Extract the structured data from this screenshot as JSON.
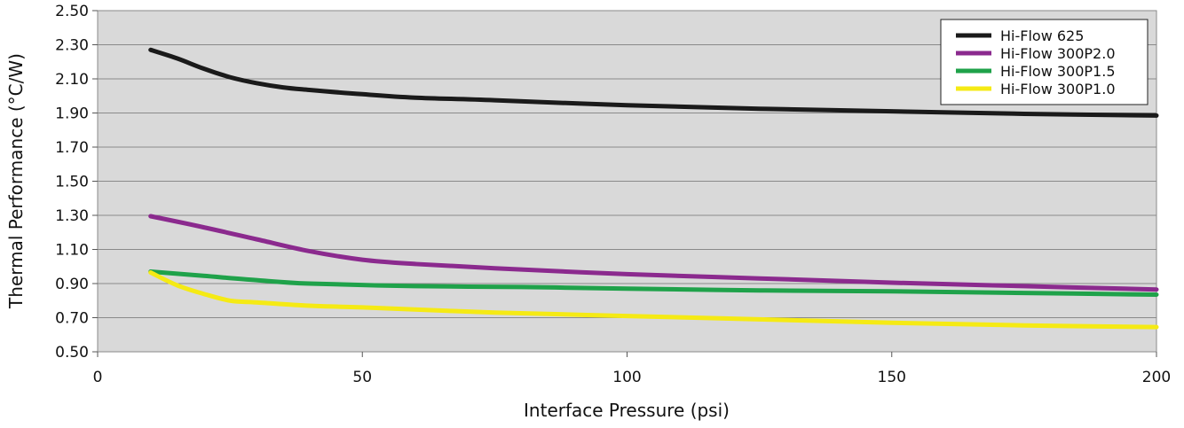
{
  "chart_data": {
    "type": "line",
    "xlabel": "Interface Pressure (psi)",
    "ylabel": "Thermal Performance (°C/W)",
    "xlim": [
      0,
      200
    ],
    "ylim": [
      0.5,
      2.5
    ],
    "x_ticks": [
      {
        "value": 0,
        "label": "0"
      },
      {
        "value": 50,
        "label": "50"
      },
      {
        "value": 100,
        "label": "100"
      },
      {
        "value": 150,
        "label": "150"
      },
      {
        "value": 200,
        "label": "200"
      }
    ],
    "y_ticks": [
      {
        "value": 0.5,
        "label": "0.50"
      },
      {
        "value": 0.7,
        "label": "0.70"
      },
      {
        "value": 0.9,
        "label": "0.90"
      },
      {
        "value": 1.1,
        "label": "1.10"
      },
      {
        "value": 1.3,
        "label": "1.30"
      },
      {
        "value": 1.5,
        "label": "1.50"
      },
      {
        "value": 1.7,
        "label": "1.70"
      },
      {
        "value": 1.9,
        "label": "1.90"
      },
      {
        "value": 2.1,
        "label": "2.10"
      },
      {
        "value": 2.3,
        "label": "2.30"
      },
      {
        "value": 2.5,
        "label": "2.50"
      }
    ],
    "grid": "horizontal",
    "plot_background": "#d9d9d9",
    "legend_position": "top-right",
    "series": [
      {
        "name": "Hi-Flow 625",
        "color": "#1a1a1a",
        "points": [
          [
            10,
            2.27
          ],
          [
            15,
            2.22
          ],
          [
            20,
            2.16
          ],
          [
            25,
            2.11
          ],
          [
            30,
            2.075
          ],
          [
            35,
            2.05
          ],
          [
            40,
            2.035
          ],
          [
            50,
            2.01
          ],
          [
            60,
            1.99
          ],
          [
            75,
            1.975
          ],
          [
            100,
            1.945
          ],
          [
            125,
            1.925
          ],
          [
            150,
            1.91
          ],
          [
            175,
            1.895
          ],
          [
            200,
            1.885
          ]
        ]
      },
      {
        "name": "Hi-Flow 300P2.0",
        "color": "#8b2a8e",
        "points": [
          [
            10,
            1.295
          ],
          [
            20,
            1.23
          ],
          [
            30,
            1.16
          ],
          [
            40,
            1.09
          ],
          [
            50,
            1.04
          ],
          [
            60,
            1.015
          ],
          [
            75,
            0.99
          ],
          [
            100,
            0.955
          ],
          [
            125,
            0.93
          ],
          [
            150,
            0.905
          ],
          [
            175,
            0.885
          ],
          [
            200,
            0.865
          ]
        ]
      },
      {
        "name": "Hi-Flow 300P1.5",
        "color": "#1fa24a",
        "points": [
          [
            10,
            0.97
          ],
          [
            20,
            0.945
          ],
          [
            30,
            0.92
          ],
          [
            40,
            0.9
          ],
          [
            60,
            0.885
          ],
          [
            80,
            0.88
          ],
          [
            100,
            0.87
          ],
          [
            125,
            0.86
          ],
          [
            150,
            0.855
          ],
          [
            175,
            0.845
          ],
          [
            200,
            0.835
          ]
        ]
      },
      {
        "name": "Hi-Flow 300P1.0",
        "color": "#f5ea14",
        "points": [
          [
            10,
            0.965
          ],
          [
            15,
            0.89
          ],
          [
            20,
            0.84
          ],
          [
            25,
            0.8
          ],
          [
            30,
            0.79
          ],
          [
            40,
            0.77
          ],
          [
            50,
            0.76
          ],
          [
            75,
            0.73
          ],
          [
            100,
            0.71
          ],
          [
            125,
            0.69
          ],
          [
            150,
            0.67
          ],
          [
            175,
            0.655
          ],
          [
            200,
            0.645
          ]
        ]
      }
    ]
  }
}
